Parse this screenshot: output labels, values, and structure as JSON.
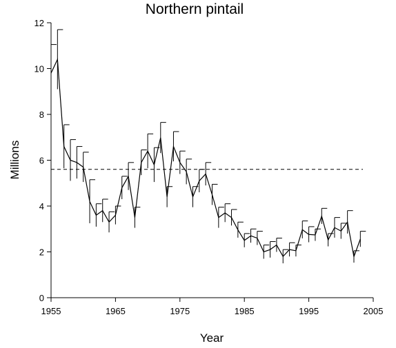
{
  "chart_data": {
    "type": "line",
    "title": "Northern pintail",
    "x_label": "Year",
    "y_label": "Millions",
    "x": [
      1955,
      1956,
      1957,
      1958,
      1959,
      1960,
      1961,
      1962,
      1963,
      1964,
      1965,
      1966,
      1967,
      1968,
      1969,
      1970,
      1971,
      1972,
      1973,
      1974,
      1975,
      1976,
      1977,
      1978,
      1979,
      1980,
      1981,
      1982,
      1983,
      1984,
      1985,
      1986,
      1987,
      1988,
      1989,
      1990,
      1991,
      1992,
      1993,
      1994,
      1995,
      1996,
      1997,
      1998,
      1999,
      2000,
      2001,
      2002,
      2003
    ],
    "series": [
      {
        "color": "#000000",
        "values": [
          9.8,
          10.4,
          6.6,
          6.0,
          5.9,
          5.7,
          4.2,
          3.6,
          3.8,
          3.3,
          3.6,
          4.8,
          5.3,
          3.5,
          5.9,
          6.4,
          5.8,
          6.98,
          4.4,
          6.6,
          5.9,
          5.5,
          4.4,
          5.1,
          5.4,
          4.5,
          3.5,
          3.7,
          3.5,
          2.96,
          2.5,
          2.7,
          2.6,
          2.0,
          2.1,
          2.3,
          1.8,
          2.1,
          2.05,
          2.97,
          2.76,
          2.74,
          3.56,
          2.52,
          3.06,
          2.91,
          3.3,
          1.79,
          2.56
        ],
        "errors": [
          1.25,
          1.3,
          0.95,
          0.9,
          0.7,
          0.65,
          0.95,
          0.5,
          0.5,
          0.45,
          0.4,
          0.5,
          0.6,
          0.45,
          0.55,
          0.75,
          0.75,
          0.67,
          0.45,
          0.65,
          0.5,
          0.55,
          0.45,
          0.5,
          0.5,
          0.45,
          0.45,
          0.4,
          0.35,
          0.34,
          0.3,
          0.3,
          0.3,
          0.3,
          0.35,
          0.3,
          0.3,
          0.3,
          0.25,
          0.38,
          0.34,
          0.26,
          0.34,
          0.28,
          0.44,
          0.34,
          0.5,
          0.26,
          0.34
        ]
      }
    ],
    "reference_line": 5.6,
    "xlim": [
      1955,
      2005
    ],
    "xticks": [
      1955,
      1965,
      1975,
      1985,
      1995,
      2005
    ],
    "ylim": [
      0,
      12
    ],
    "yticks": [
      0,
      2,
      4,
      6,
      8,
      10,
      12
    ]
  }
}
